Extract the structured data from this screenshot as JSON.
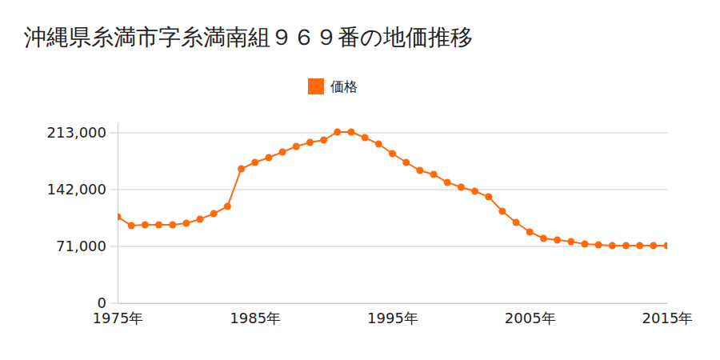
{
  "chart_data": {
    "type": "line",
    "title": "沖縄県糸満市字糸満南組９６９番の地価推移",
    "x": [
      1975,
      1976,
      1977,
      1978,
      1979,
      1980,
      1981,
      1982,
      1983,
      1984,
      1985,
      1986,
      1987,
      1988,
      1989,
      1990,
      1991,
      1992,
      1993,
      1994,
      1995,
      1996,
      1997,
      1998,
      1999,
      2000,
      2001,
      2002,
      2003,
      2004,
      2005,
      2006,
      2007,
      2008,
      2009,
      2010,
      2011,
      2012,
      2013,
      2014,
      2015
    ],
    "series": [
      {
        "name": "価格",
        "color": "#ff6a0d",
        "marker": "circle",
        "values": [
          108000,
          97000,
          98000,
          98000,
          98000,
          100000,
          105000,
          112000,
          121000,
          168000,
          176000,
          182000,
          189000,
          196000,
          201000,
          204000,
          214000,
          214000,
          207000,
          199000,
          187000,
          176000,
          166000,
          161000,
          151000,
          145000,
          140000,
          133000,
          115000,
          101000,
          89000,
          81000,
          79000,
          77000,
          74000,
          73000,
          72000,
          72000,
          72000,
          72000,
          72000
        ]
      }
    ],
    "xlim": [
      1975,
      2015
    ],
    "xticks": [
      {
        "value": 1975,
        "label": "1975年"
      },
      {
        "value": 1985,
        "label": "1985年"
      },
      {
        "value": 1995,
        "label": "1995年"
      },
      {
        "value": 2005,
        "label": "2005年"
      },
      {
        "value": 2015,
        "label": "2015年"
      }
    ],
    "ylim": [
      0,
      225000
    ],
    "yticks": [
      0,
      {
        "value": 71000,
        "label": "71,000"
      },
      {
        "value": 142000,
        "label": "142,000"
      },
      {
        "value": 213000,
        "label": "213,000"
      }
    ],
    "grid": true,
    "legend": "top"
  }
}
